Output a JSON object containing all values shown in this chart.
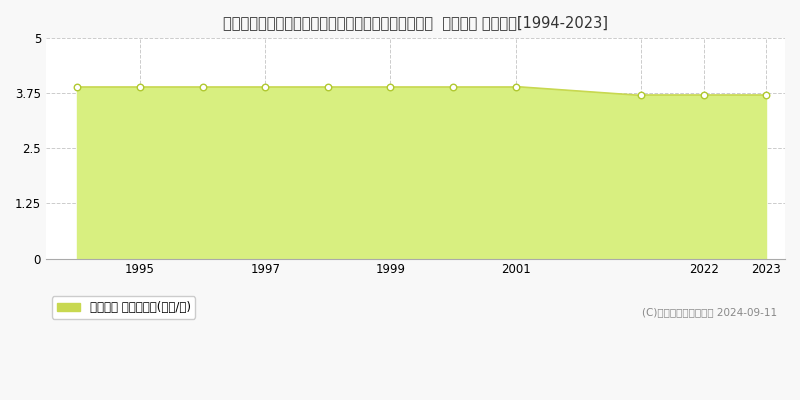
{
  "title": "宮崎県児湯郡都農町大字川北字新別府原１１８３番１  地価公示 地価推移[1994-2023]",
  "years_early": [
    1994,
    1995,
    1996,
    1997,
    1998,
    1999,
    2000,
    2001
  ],
  "values_early": [
    3.9,
    3.9,
    3.9,
    3.9,
    3.9,
    3.9,
    3.9,
    3.9
  ],
  "years_late": [
    2021,
    2022,
    2023
  ],
  "values_late": [
    3.7,
    3.7,
    3.7
  ],
  "ylim": [
    0,
    5
  ],
  "yticks": [
    0,
    1.25,
    2.5,
    3.75,
    5
  ],
  "line_color": "#c8d850",
  "fill_color": "#d8ef80",
  "fill_alpha": 1.0,
  "marker_facecolor": "white",
  "marker_edgecolor": "#b0c830",
  "grid_color": "#cccccc",
  "bg_color": "#f8f8f8",
  "plot_bg_color": "#ffffff",
  "legend_label": "地価公示 平均坪単価(万円/坪)",
  "legend_marker_color": "#c8d850",
  "copyright_text": "(C)土地価格ドットコム 2024-09-11",
  "title_fontsize": 10.5,
  "tick_fontsize": 8.5,
  "legend_fontsize": 8.5
}
